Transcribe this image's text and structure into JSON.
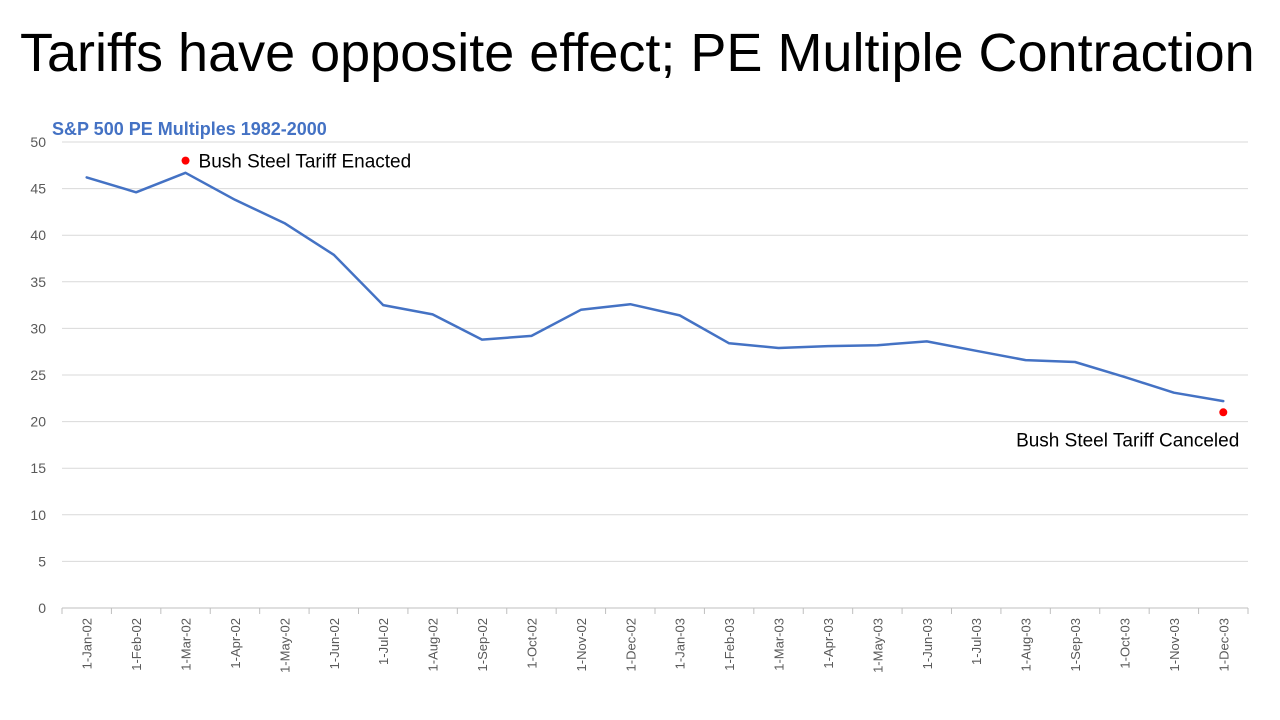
{
  "slide": {
    "title": "Tariffs have opposite effect; PE Multiple Contraction"
  },
  "colors": {
    "series": "#4472C4",
    "marker": "#FF0000",
    "title": "#4472C4",
    "grid": "#D9D9D9"
  },
  "chart_data": {
    "type": "line",
    "title": "S&P 500 PE Multiples 1982-2000",
    "xlabel": "",
    "ylabel": "",
    "ylim": [
      0,
      50
    ],
    "yticks": [
      0,
      5,
      10,
      15,
      20,
      25,
      30,
      35,
      40,
      45,
      50
    ],
    "grid": true,
    "legend": "none",
    "categories": [
      "1-Jan-02",
      "1-Feb-02",
      "1-Mar-02",
      "1-Apr-02",
      "1-May-02",
      "1-Jun-02",
      "1-Jul-02",
      "1-Aug-02",
      "1-Sep-02",
      "1-Oct-02",
      "1-Nov-02",
      "1-Dec-02",
      "1-Jan-03",
      "1-Feb-03",
      "1-Mar-03",
      "1-Apr-03",
      "1-May-03",
      "1-Jun-03",
      "1-Jul-03",
      "1-Aug-03",
      "1-Sep-03",
      "1-Oct-03",
      "1-Nov-03",
      "1-Dec-03"
    ],
    "series": [
      {
        "values": [
          46.2,
          44.6,
          46.7,
          43.8,
          41.3,
          37.9,
          32.5,
          31.5,
          28.8,
          29.2,
          32.0,
          32.6,
          31.4,
          28.4,
          27.9,
          28.1,
          28.2,
          28.6,
          27.6,
          26.6,
          26.4,
          24.8,
          23.1,
          22.2
        ]
      }
    ],
    "annotations": [
      {
        "label": "Bush Steel Tariff Enacted",
        "category": "1-Mar-02",
        "value": 48.0,
        "label_side": "right"
      },
      {
        "label": "Bush Steel Tariff Canceled",
        "category": "1-Dec-03",
        "value": 21.0,
        "label_side": "below-left"
      }
    ]
  }
}
